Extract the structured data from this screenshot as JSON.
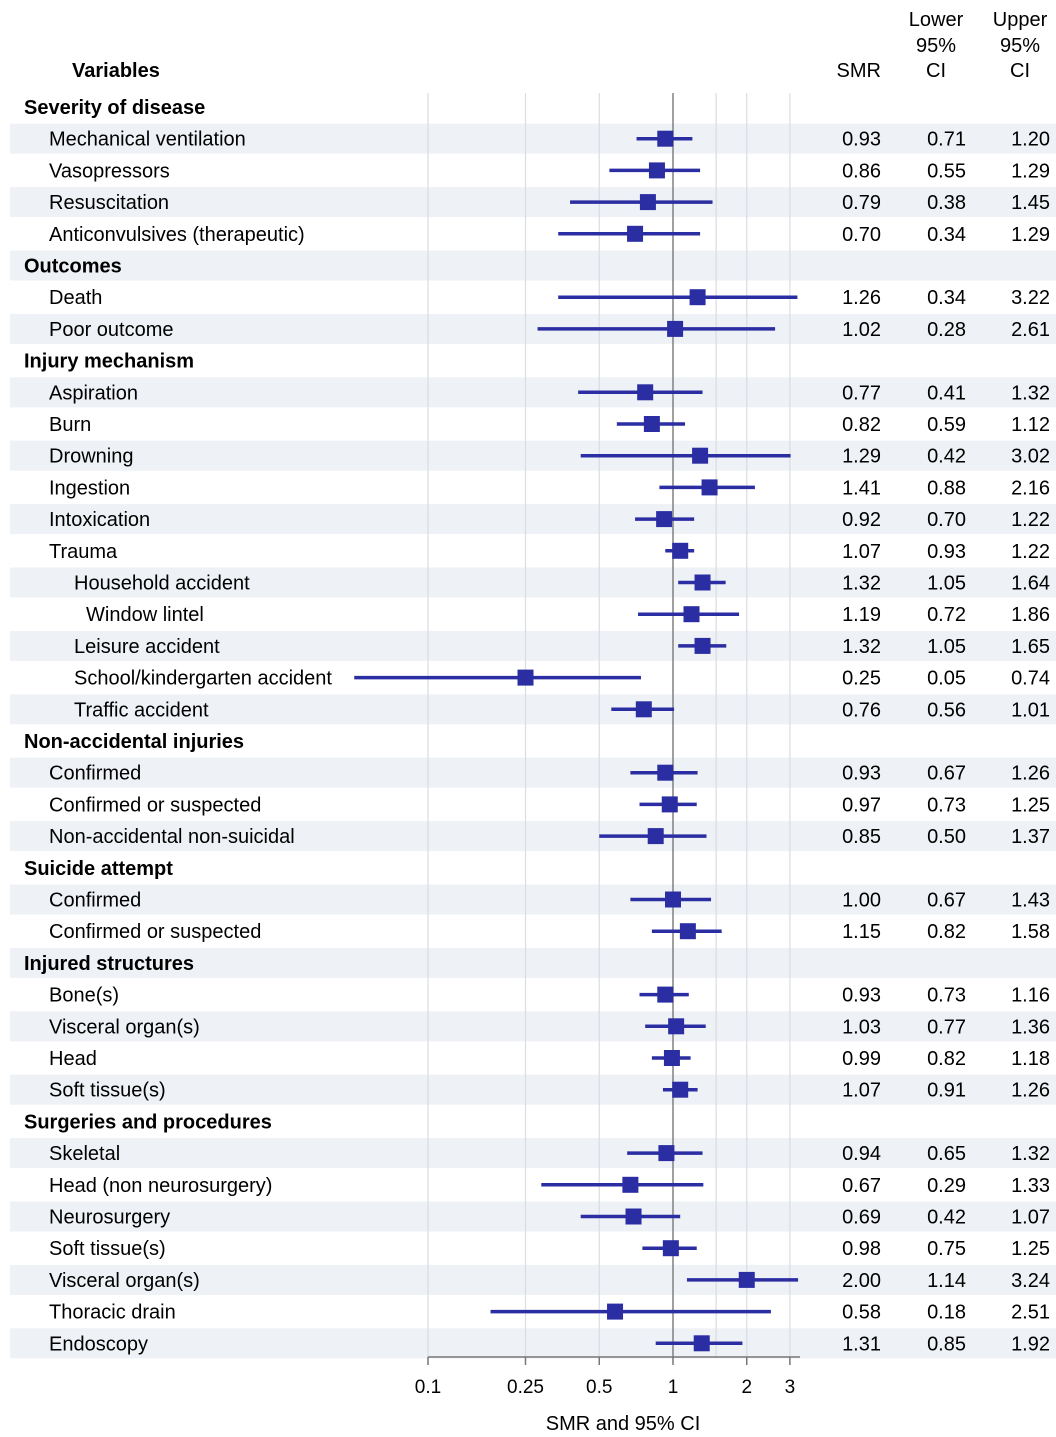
{
  "chart_data": {
    "type": "forest",
    "columns": {
      "variables": "Variables",
      "smr": "SMR",
      "lower": [
        "Lower",
        "95%",
        "CI"
      ],
      "upper": [
        "Upper",
        "95%",
        "CI"
      ]
    },
    "xlabel": "SMR and 95% CI",
    "x_scale": "log",
    "xlim": [
      0.1,
      3.3
    ],
    "x_ticks": [
      0.1,
      0.25,
      0.5,
      1,
      2,
      3
    ],
    "x_tick_labels": [
      "0.1",
      "0.25",
      "0.5",
      "1",
      "2",
      "3"
    ],
    "reference_line": 1,
    "grid": true,
    "colors": {
      "marker": "#2b2ea3",
      "stripe": "#eef1f5",
      "reference": "#888888",
      "grid": "#d9dde3"
    },
    "rows": [
      {
        "label": "Severity of disease",
        "group": true
      },
      {
        "label": "Mechanical ventilation",
        "indent": 1,
        "smr": 0.93,
        "lower": 0.71,
        "upper": 1.2,
        "smr_text": "0.93",
        "lower_text": "0.71",
        "upper_text": "1.20"
      },
      {
        "label": "Vasopressors",
        "indent": 1,
        "smr": 0.86,
        "lower": 0.55,
        "upper": 1.29,
        "smr_text": "0.86",
        "lower_text": "0.55",
        "upper_text": "1.29"
      },
      {
        "label": "Resuscitation",
        "indent": 1,
        "smr": 0.79,
        "lower": 0.38,
        "upper": 1.45,
        "smr_text": "0.79",
        "lower_text": "0.38",
        "upper_text": "1.45"
      },
      {
        "label": "Anticonvulsives (therapeutic)",
        "indent": 1,
        "smr": 0.7,
        "lower": 0.34,
        "upper": 1.29,
        "smr_text": "0.70",
        "lower_text": "0.34",
        "upper_text": "1.29"
      },
      {
        "label": "Outcomes",
        "group": true
      },
      {
        "label": "Death",
        "indent": 1,
        "smr": 1.26,
        "lower": 0.34,
        "upper": 3.22,
        "smr_text": "1.26",
        "lower_text": "0.34",
        "upper_text": "3.22"
      },
      {
        "label": "Poor outcome",
        "indent": 1,
        "smr": 1.02,
        "lower": 0.28,
        "upper": 2.61,
        "smr_text": "1.02",
        "lower_text": "0.28",
        "upper_text": "2.61"
      },
      {
        "label": "Injury mechanism",
        "group": true
      },
      {
        "label": "Aspiration",
        "indent": 1,
        "smr": 0.77,
        "lower": 0.41,
        "upper": 1.32,
        "smr_text": "0.77",
        "lower_text": "0.41",
        "upper_text": "1.32"
      },
      {
        "label": "Burn",
        "indent": 1,
        "smr": 0.82,
        "lower": 0.59,
        "upper": 1.12,
        "smr_text": "0.82",
        "lower_text": "0.59",
        "upper_text": "1.12"
      },
      {
        "label": "Drowning",
        "indent": 1,
        "smr": 1.29,
        "lower": 0.42,
        "upper": 3.02,
        "smr_text": "1.29",
        "lower_text": "0.42",
        "upper_text": "3.02"
      },
      {
        "label": "Ingestion",
        "indent": 1,
        "smr": 1.41,
        "lower": 0.88,
        "upper": 2.16,
        "smr_text": "1.41",
        "lower_text": "0.88",
        "upper_text": "2.16"
      },
      {
        "label": "Intoxication",
        "indent": 1,
        "smr": 0.92,
        "lower": 0.7,
        "upper": 1.22,
        "smr_text": "0.92",
        "lower_text": "0.70",
        "upper_text": "1.22"
      },
      {
        "label": "Trauma",
        "indent": 1,
        "smr": 1.07,
        "lower": 0.93,
        "upper": 1.22,
        "smr_text": "1.07",
        "lower_text": "0.93",
        "upper_text": "1.22"
      },
      {
        "label": "Household accident",
        "indent": 2,
        "smr": 1.32,
        "lower": 1.05,
        "upper": 1.64,
        "smr_text": "1.32",
        "lower_text": "1.05",
        "upper_text": "1.64"
      },
      {
        "label": "Window lintel",
        "indent": 3,
        "smr": 1.19,
        "lower": 0.72,
        "upper": 1.86,
        "smr_text": "1.19",
        "lower_text": "0.72",
        "upper_text": "1.86"
      },
      {
        "label": "Leisure accident",
        "indent": 2,
        "smr": 1.32,
        "lower": 1.05,
        "upper": 1.65,
        "smr_text": "1.32",
        "lower_text": "1.05",
        "upper_text": "1.65"
      },
      {
        "label": "School/kindergarten accident",
        "indent": 2,
        "smr": 0.25,
        "lower": 0.05,
        "upper": 0.74,
        "smr_text": "0.25",
        "lower_text": "0.05",
        "upper_text": "0.74"
      },
      {
        "label": "Traffic accident",
        "indent": 2,
        "smr": 0.76,
        "lower": 0.56,
        "upper": 1.01,
        "smr_text": "0.76",
        "lower_text": "0.56",
        "upper_text": "1.01"
      },
      {
        "label": "Non-accidental injuries",
        "group": true
      },
      {
        "label": "Confirmed",
        "indent": 1,
        "smr": 0.93,
        "lower": 0.67,
        "upper": 1.26,
        "smr_text": "0.93",
        "lower_text": "0.67",
        "upper_text": "1.26"
      },
      {
        "label": "Confirmed or suspected",
        "indent": 1,
        "smr": 0.97,
        "lower": 0.73,
        "upper": 1.25,
        "smr_text": "0.97",
        "lower_text": "0.73",
        "upper_text": "1.25"
      },
      {
        "label": "Non-accidental non-suicidal",
        "indent": 1,
        "smr": 0.85,
        "lower": 0.5,
        "upper": 1.37,
        "smr_text": "0.85",
        "lower_text": "0.50",
        "upper_text": "1.37"
      },
      {
        "label": "Suicide attempt",
        "group": true
      },
      {
        "label": "Confirmed",
        "indent": 1,
        "smr": 1.0,
        "lower": 0.67,
        "upper": 1.43,
        "smr_text": "1.00",
        "lower_text": "0.67",
        "upper_text": "1.43"
      },
      {
        "label": "Confirmed or suspected",
        "indent": 1,
        "smr": 1.15,
        "lower": 0.82,
        "upper": 1.58,
        "smr_text": "1.15",
        "lower_text": "0.82",
        "upper_text": "1.58"
      },
      {
        "label": "Injured structures",
        "group": true
      },
      {
        "label": "Bone(s)",
        "indent": 1,
        "smr": 0.93,
        "lower": 0.73,
        "upper": 1.16,
        "smr_text": "0.93",
        "lower_text": "0.73",
        "upper_text": "1.16"
      },
      {
        "label": "Visceral organ(s)",
        "indent": 1,
        "smr": 1.03,
        "lower": 0.77,
        "upper": 1.36,
        "smr_text": "1.03",
        "lower_text": "0.77",
        "upper_text": "1.36"
      },
      {
        "label": "Head",
        "indent": 1,
        "smr": 0.99,
        "lower": 0.82,
        "upper": 1.18,
        "smr_text": "0.99",
        "lower_text": "0.82",
        "upper_text": "1.18"
      },
      {
        "label": "Soft tissue(s)",
        "indent": 1,
        "smr": 1.07,
        "lower": 0.91,
        "upper": 1.26,
        "smr_text": "1.07",
        "lower_text": "0.91",
        "upper_text": "1.26"
      },
      {
        "label": "Surgeries and procedures",
        "group": true
      },
      {
        "label": "Skeletal",
        "indent": 1,
        "smr": 0.94,
        "lower": 0.65,
        "upper": 1.32,
        "smr_text": "0.94",
        "lower_text": "0.65",
        "upper_text": "1.32"
      },
      {
        "label": "Head (non neurosurgery)",
        "indent": 1,
        "smr": 0.67,
        "lower": 0.29,
        "upper": 1.33,
        "smr_text": "0.67",
        "lower_text": "0.29",
        "upper_text": "1.33"
      },
      {
        "label": "Neurosurgery",
        "indent": 1,
        "smr": 0.69,
        "lower": 0.42,
        "upper": 1.07,
        "smr_text": "0.69",
        "lower_text": "0.42",
        "upper_text": "1.07"
      },
      {
        "label": "Soft tissue(s)",
        "indent": 1,
        "smr": 0.98,
        "lower": 0.75,
        "upper": 1.25,
        "smr_text": "0.98",
        "lower_text": "0.75",
        "upper_text": "1.25"
      },
      {
        "label": "Visceral organ(s)",
        "indent": 1,
        "smr": 2.0,
        "lower": 1.14,
        "upper": 3.24,
        "smr_text": "2.00",
        "lower_text": "1.14",
        "upper_text": "3.24"
      },
      {
        "label": "Thoracic drain",
        "indent": 1,
        "smr": 0.58,
        "lower": 0.18,
        "upper": 2.51,
        "smr_text": "0.58",
        "lower_text": "0.18",
        "upper_text": "2.51"
      },
      {
        "label": "Endoscopy",
        "indent": 1,
        "smr": 1.31,
        "lower": 0.85,
        "upper": 1.92,
        "smr_text": "1.31",
        "lower_text": "0.85",
        "upper_text": "1.92"
      }
    ]
  }
}
